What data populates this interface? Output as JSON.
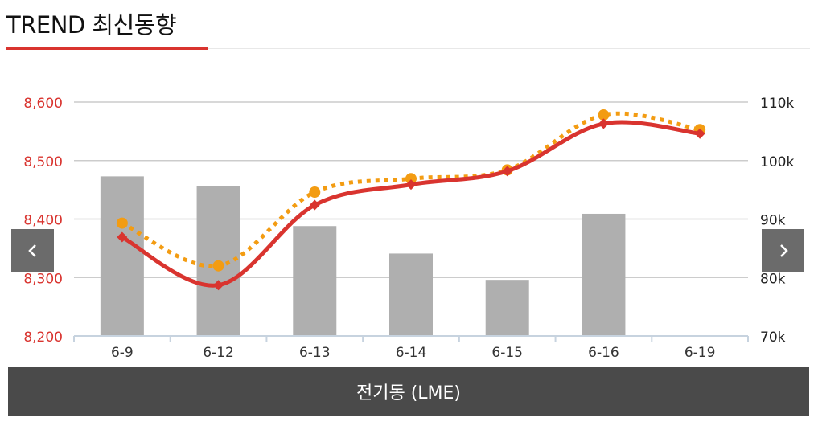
{
  "header": {
    "title": "TREND 최신동향"
  },
  "footer": {
    "label": "전기동 (LME)"
  },
  "nav": {
    "prev_icon": "chevron-left-icon",
    "next_icon": "chevron-right-icon"
  },
  "colors": {
    "price_line": "#d9342f",
    "secondary_line": "#f39c12",
    "bars": "#afafaf",
    "left_axis_text": "#d9342f",
    "right_axis_text": "#222222",
    "grid": "#cccccc",
    "x_axis": "#c7d3df"
  },
  "chart_data": {
    "type": "bar",
    "categories": [
      "6-9",
      "6-12",
      "6-13",
      "6-14",
      "6-15",
      "6-16",
      "6-19"
    ],
    "y_left": {
      "ylim": [
        8200,
        8600
      ],
      "ticks": [
        8200,
        8300,
        8400,
        8500,
        8600
      ],
      "tick_labels": [
        "8,200",
        "8,300",
        "8,400",
        "8,500",
        "8,600"
      ]
    },
    "y_right": {
      "ylim": [
        70000,
        110000
      ],
      "ticks": [
        70000,
        80000,
        90000,
        100000,
        110000
      ],
      "tick_labels": [
        "70k",
        "80k",
        "90k",
        "100k",
        "110k"
      ]
    },
    "series": [
      {
        "type": "bar",
        "axis": "right",
        "values": [
          97300,
          95600,
          88800,
          84100,
          79600,
          90900,
          null
        ]
      },
      {
        "type": "line",
        "axis": "left",
        "style": "solid",
        "marker": "diamond",
        "values": [
          8369,
          8287,
          8424,
          8459,
          8482,
          8563,
          8546
        ]
      },
      {
        "type": "line",
        "axis": "left",
        "style": "dotted",
        "marker": "circle",
        "values": [
          8393,
          8320,
          8446,
          8469,
          8484,
          8578,
          8553
        ]
      }
    ],
    "grid": true
  }
}
